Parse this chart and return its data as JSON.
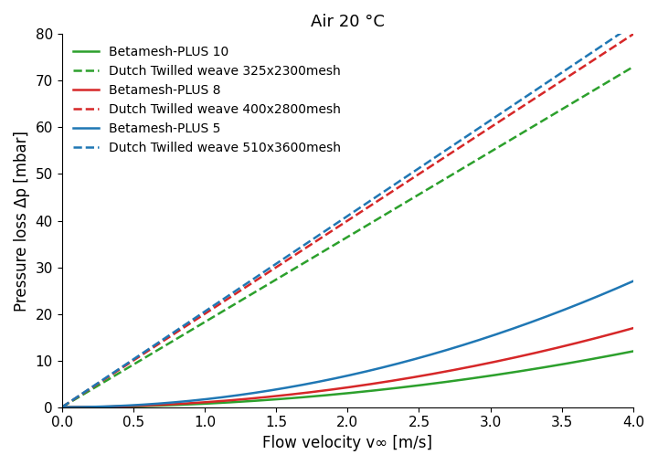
{
  "title": "Air 20 °C",
  "xlabel": "Flow velocity v∞ [m/s]",
  "ylabel": "Pressure loss Δp [mbar]",
  "xlim": [
    0,
    4.0
  ],
  "ylim": [
    0,
    80
  ],
  "xticks": [
    0.0,
    0.5,
    1.0,
    1.5,
    2.0,
    2.5,
    3.0,
    3.5,
    4.0
  ],
  "yticks": [
    0,
    10,
    20,
    30,
    40,
    50,
    60,
    70,
    80
  ],
  "curves": [
    {
      "label": "Betamesh-PLUS 10",
      "color": "#2ca02c",
      "linestyle": "solid",
      "coeff_a": 0.0,
      "coeff_b": 0.75
    },
    {
      "label": "Dutch Twilled weave 325x2300mesh",
      "color": "#2ca02c",
      "linestyle": "dashed",
      "coeff_a": 18.25,
      "coeff_b": 0.0
    },
    {
      "label": "Betamesh-PLUS 8",
      "color": "#d62728",
      "linestyle": "solid",
      "coeff_a": 0.0,
      "coeff_b": 1.06
    },
    {
      "label": "Dutch Twilled weave 400x2800mesh",
      "color": "#d62728",
      "linestyle": "dashed",
      "coeff_a": 20.0,
      "coeff_b": 0.0
    },
    {
      "label": "Betamesh-PLUS 5",
      "color": "#1f77b4",
      "linestyle": "solid",
      "coeff_a": 0.0,
      "coeff_b": 1.69
    },
    {
      "label": "Dutch Twilled weave 510x3600mesh",
      "color": "#1f77b4",
      "linestyle": "dashed",
      "coeff_a": 20.5,
      "coeff_b": 0.0
    }
  ],
  "background_color": "#ffffff",
  "title_fontsize": 13,
  "label_fontsize": 12,
  "tick_fontsize": 11,
  "legend_fontsize": 10,
  "linewidth": 1.8,
  "dashed_linewidth": 1.8
}
